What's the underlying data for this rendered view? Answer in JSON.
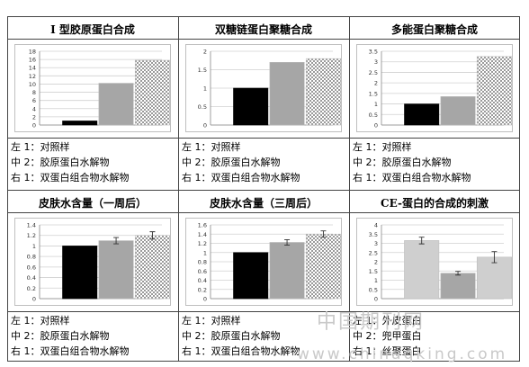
{
  "colors": {
    "control": "#000000",
    "middle": "#a6a6a6",
    "right_fill": "#ffffff",
    "right_pattern": "#9a9a9a",
    "grid": "#d0d0d0",
    "border": "#444444"
  },
  "legend_standard": [
    "左 1：对照样",
    "中 2：胶原蛋白水解物",
    "右 1：双蛋白组合物水解物"
  ],
  "legend_last": [
    "左 1：外皮蛋白",
    "中 2：兜甲蛋白",
    "右 1：丝聚蛋白"
  ],
  "watermark": {
    "cn": "中国期刊网",
    "url": "www.chinaqking.com"
  },
  "chart_data": [
    {
      "type": "bar",
      "title": "I 型胶原蛋白合成",
      "categories": [
        "左 1",
        "中 2",
        "右 1"
      ],
      "values": [
        1,
        10.2,
        15.8
      ],
      "ylim": [
        0,
        18
      ],
      "yticks": [
        "0",
        "2",
        "4",
        "6",
        "8",
        "10",
        "12",
        "14",
        "16",
        "18"
      ],
      "error": null,
      "grid": true
    },
    {
      "type": "bar",
      "title": "双糖链蛋白聚糖合成",
      "categories": [
        "左 1",
        "中 2",
        "右 1"
      ],
      "values": [
        1,
        1.7,
        1.8
      ],
      "ylim": [
        0,
        2
      ],
      "yticks": [
        "0",
        "0.5",
        "1",
        "1.5",
        "2"
      ],
      "error": null,
      "grid": true
    },
    {
      "type": "bar",
      "title": "多能蛋白聚糖合成",
      "categories": [
        "左 1",
        "中 2",
        "右 1"
      ],
      "values": [
        1,
        1.35,
        3.25
      ],
      "ylim": [
        0,
        3.5
      ],
      "yticks": [
        "0",
        "0.5",
        "1",
        "1.5",
        "2",
        "2.5",
        "3",
        "3.5"
      ],
      "error": null,
      "grid": true
    },
    {
      "type": "bar",
      "title": "皮肤水含量（一周后）",
      "categories": [
        "左 1",
        "中 2",
        "右 1"
      ],
      "values": [
        1,
        1.1,
        1.2
      ],
      "ylim": [
        0,
        1.4
      ],
      "yticks": [
        "0",
        "0.2",
        "0.4",
        "0.6",
        "0.8",
        "1",
        "1.2",
        "1.4"
      ],
      "error": [
        null,
        0.06,
        0.07
      ],
      "grid": true
    },
    {
      "type": "bar",
      "title": "皮肤水含量（三周后）",
      "categories": [
        "左 1",
        "中 2",
        "右 1"
      ],
      "values": [
        1,
        1.22,
        1.4
      ],
      "ylim": [
        0,
        1.6
      ],
      "yticks": [
        "0",
        "0.2",
        "0.4",
        "0.6",
        "0.8",
        "1",
        "1.2",
        "1.4",
        "1.6"
      ],
      "error": [
        null,
        0.06,
        0.07
      ],
      "grid": true
    },
    {
      "type": "bar",
      "title": "CE-蛋白的合成的刺激",
      "categories": [
        "左 1",
        "中 2",
        "右 1"
      ],
      "values": [
        3.15,
        1.38,
        2.25
      ],
      "ylim": [
        0,
        4
      ],
      "yticks": [
        "0",
        "0.5",
        "1",
        "1.5",
        "2",
        "2.5",
        "3",
        "3.5",
        "4"
      ],
      "error": [
        0.18,
        0.1,
        0.3
      ],
      "grid": true,
      "style": "light"
    }
  ]
}
